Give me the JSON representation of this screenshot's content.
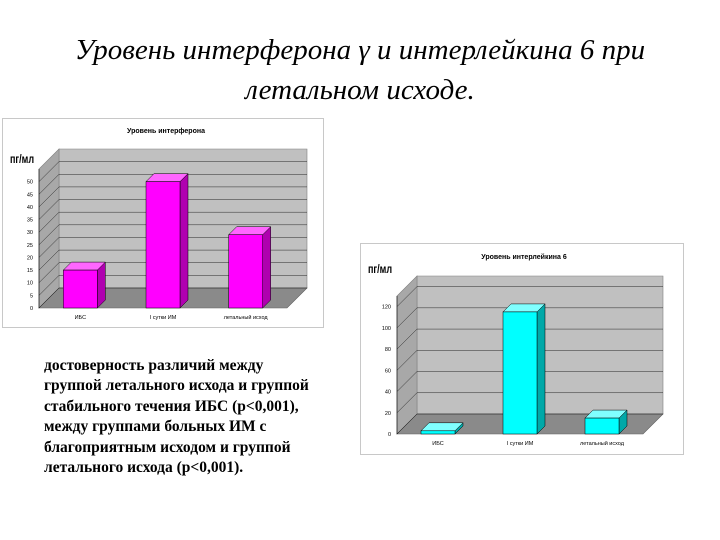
{
  "slide": {
    "title_line1": "Уровень интерферона γ и интерлейкина 6 при",
    "title_line2": "летальном исходе.",
    "note": "достоверность различий между группой летального исхода и группой стабильного течения ИБС (p<0,001), между группами больных ИМ с благоприятным исходом и группой летального исхода (p<0,001)."
  },
  "chart_data": [
    {
      "type": "bar",
      "title": "Уровень интерферона",
      "ylabel": "пг/мл",
      "categories": [
        "ИБС",
        "I сутки ИМ",
        "летальный исход"
      ],
      "values": [
        15,
        50,
        29
      ],
      "ylim": [
        0,
        55
      ],
      "yticks": [
        0,
        5,
        10,
        15,
        20,
        25,
        30,
        35,
        40,
        45,
        50
      ],
      "grid": true,
      "legend": "none",
      "colors": {
        "bar": "#ff00ff",
        "bar_side": "#b000b0",
        "bar_top": "#ff66ff",
        "plot_bg": "#c0c0c0",
        "floor": "#8a8a8a"
      }
    },
    {
      "type": "bar",
      "title": "Уровень интерлейкина 6",
      "ylabel": "пг/мл",
      "categories": [
        "ИБС",
        "I сутки ИМ",
        "летальный исход"
      ],
      "values": [
        3,
        115,
        15
      ],
      "ylim": [
        0,
        130
      ],
      "yticks": [
        0,
        20,
        40,
        60,
        80,
        100,
        120
      ],
      "grid": true,
      "legend": "none",
      "colors": {
        "bar": "#00ffff",
        "bar_side": "#00a8a8",
        "bar_top": "#80ffff",
        "plot_bg": "#c0c0c0",
        "floor": "#8a8a8a"
      }
    }
  ]
}
